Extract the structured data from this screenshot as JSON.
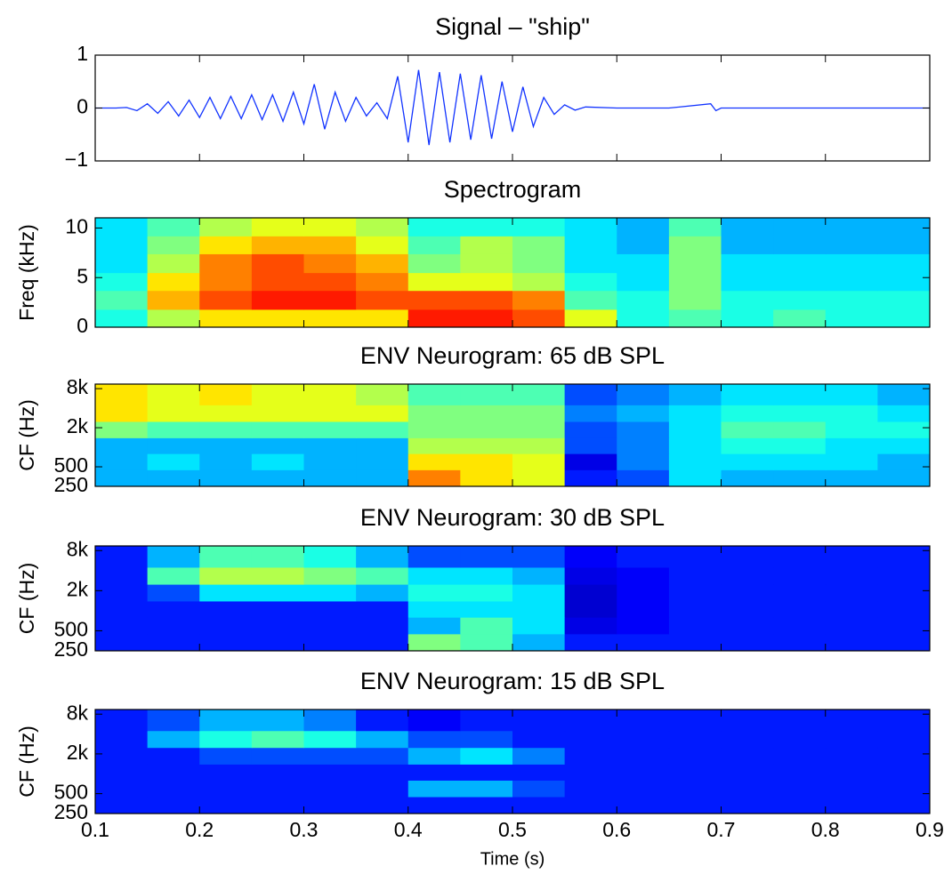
{
  "chart_data": [
    {
      "type": "line",
      "title": "Signal – \"ship\"",
      "color": "#1133ff",
      "x": [
        0.1,
        0.11,
        0.12,
        0.13,
        0.14,
        0.15,
        0.16,
        0.17,
        0.18,
        0.19,
        0.2,
        0.21,
        0.22,
        0.23,
        0.24,
        0.25,
        0.26,
        0.27,
        0.28,
        0.29,
        0.3,
        0.31,
        0.32,
        0.33,
        0.34,
        0.35,
        0.36,
        0.37,
        0.38,
        0.39,
        0.4,
        0.41,
        0.42,
        0.43,
        0.44,
        0.45,
        0.46,
        0.47,
        0.48,
        0.49,
        0.5,
        0.51,
        0.52,
        0.53,
        0.54,
        0.55,
        0.56,
        0.57,
        0.6,
        0.65,
        0.69,
        0.695,
        0.7,
        0.8,
        0.9
      ],
      "values": [
        0,
        0,
        0,
        0.01,
        -0.05,
        0.08,
        -0.1,
        0.12,
        -0.15,
        0.15,
        -0.18,
        0.2,
        -0.2,
        0.22,
        -0.2,
        0.25,
        -0.22,
        0.25,
        -0.25,
        0.3,
        -0.3,
        0.45,
        -0.4,
        0.3,
        -0.25,
        0.2,
        -0.15,
        0.1,
        -0.2,
        0.6,
        -0.65,
        0.72,
        -0.7,
        0.68,
        -0.65,
        0.65,
        -0.6,
        0.62,
        -0.58,
        0.5,
        -0.45,
        0.4,
        -0.35,
        0.2,
        -0.12,
        0.06,
        -0.04,
        0.02,
        0,
        0,
        0.08,
        -0.05,
        0,
        0,
        0
      ],
      "xlim": [
        0.1,
        0.9
      ],
      "xticks": [
        0.1,
        0.2,
        0.3,
        0.4,
        0.5,
        0.6,
        0.7,
        0.8,
        0.9
      ],
      "show_xtick_labels": false,
      "ylim": [
        -1,
        1
      ],
      "yticks": [
        {
          "value": -1,
          "label": "−1"
        },
        0,
        1
      ]
    },
    {
      "type": "heatmap",
      "title": "Spectrogram",
      "ylabel": "Freq (kHz)",
      "colormap": "jet",
      "zlim": [
        0,
        1
      ],
      "xlim": [
        0.1,
        0.9
      ],
      "xticks": [
        0.1,
        0.2,
        0.3,
        0.4,
        0.5,
        0.6,
        0.7,
        0.8,
        0.9
      ],
      "show_xtick_labels": false,
      "ylim": [
        0,
        11.025
      ],
      "yticks": [
        0,
        5,
        10
      ],
      "xbins": [
        0.1,
        0.15,
        0.2,
        0.25,
        0.3,
        0.35,
        0.4,
        0.45,
        0.5,
        0.55,
        0.6,
        0.65,
        0.7,
        0.75,
        0.8,
        0.85,
        0.9
      ],
      "ybins": [
        0,
        1.8,
        3.7,
        5.5,
        7.4,
        9.2,
        11.025
      ],
      "z": [
        [
          0.4,
          0.55,
          0.65,
          0.65,
          0.65,
          0.65,
          0.85,
          0.85,
          0.8,
          0.6,
          0.4,
          0.45,
          0.4,
          0.45,
          0.4,
          0.4
        ],
        [
          0.45,
          0.7,
          0.8,
          0.85,
          0.85,
          0.8,
          0.8,
          0.8,
          0.75,
          0.45,
          0.4,
          0.5,
          0.4,
          0.4,
          0.4,
          0.4
        ],
        [
          0.4,
          0.65,
          0.75,
          0.8,
          0.8,
          0.75,
          0.6,
          0.6,
          0.55,
          0.4,
          0.35,
          0.5,
          0.35,
          0.35,
          0.35,
          0.35
        ],
        [
          0.35,
          0.55,
          0.75,
          0.8,
          0.75,
          0.7,
          0.5,
          0.55,
          0.5,
          0.35,
          0.35,
          0.5,
          0.35,
          0.35,
          0.35,
          0.35
        ],
        [
          0.35,
          0.5,
          0.65,
          0.7,
          0.7,
          0.6,
          0.45,
          0.55,
          0.5,
          0.35,
          0.3,
          0.5,
          0.3,
          0.3,
          0.3,
          0.3
        ],
        [
          0.35,
          0.45,
          0.55,
          0.6,
          0.6,
          0.55,
          0.4,
          0.4,
          0.4,
          0.35,
          0.3,
          0.45,
          0.3,
          0.3,
          0.3,
          0.3
        ]
      ]
    },
    {
      "type": "heatmap",
      "title": "ENV Neurogram: 65 dB SPL",
      "ylabel": "CF (Hz)",
      "colormap": "jet",
      "zlim": [
        0,
        1
      ],
      "yscale": "log",
      "xlim": [
        0.1,
        0.9
      ],
      "xticks": [
        0.1,
        0.2,
        0.3,
        0.4,
        0.5,
        0.6,
        0.7,
        0.8,
        0.9
      ],
      "show_xtick_labels": false,
      "ylim": [
        250,
        9400
      ],
      "yticks": [
        250,
        500,
        {
          "value": 2000,
          "label": "2k"
        },
        {
          "value": 8000,
          "label": "8k"
        }
      ],
      "xbins": [
        0.1,
        0.15,
        0.2,
        0.25,
        0.3,
        0.35,
        0.4,
        0.45,
        0.5,
        0.55,
        0.6,
        0.65,
        0.7,
        0.75,
        0.8,
        0.85,
        0.9
      ],
      "ybins": [
        250,
        450,
        800,
        1400,
        2500,
        4500,
        9400
      ],
      "z": [
        [
          0.3,
          0.3,
          0.3,
          0.3,
          0.3,
          0.3,
          0.75,
          0.65,
          0.6,
          0.15,
          0.2,
          0.35,
          0.3,
          0.3,
          0.3,
          0.3
        ],
        [
          0.3,
          0.35,
          0.3,
          0.35,
          0.3,
          0.3,
          0.65,
          0.65,
          0.6,
          0.1,
          0.25,
          0.35,
          0.35,
          0.35,
          0.35,
          0.3
        ],
        [
          0.3,
          0.3,
          0.3,
          0.3,
          0.3,
          0.3,
          0.55,
          0.55,
          0.55,
          0.2,
          0.25,
          0.35,
          0.4,
          0.4,
          0.35,
          0.35
        ],
        [
          0.5,
          0.45,
          0.45,
          0.45,
          0.45,
          0.45,
          0.5,
          0.5,
          0.5,
          0.2,
          0.25,
          0.35,
          0.45,
          0.45,
          0.4,
          0.4
        ],
        [
          0.65,
          0.6,
          0.6,
          0.6,
          0.6,
          0.6,
          0.5,
          0.5,
          0.5,
          0.25,
          0.3,
          0.35,
          0.4,
          0.4,
          0.4,
          0.35
        ],
        [
          0.65,
          0.6,
          0.65,
          0.6,
          0.6,
          0.55,
          0.45,
          0.45,
          0.45,
          0.2,
          0.25,
          0.3,
          0.35,
          0.35,
          0.35,
          0.3
        ]
      ]
    },
    {
      "type": "heatmap",
      "title": "ENV Neurogram: 30 dB SPL",
      "ylabel": "CF (Hz)",
      "colormap": "jet",
      "zlim": [
        0,
        1
      ],
      "yscale": "log",
      "xlim": [
        0.1,
        0.9
      ],
      "xticks": [
        0.1,
        0.2,
        0.3,
        0.4,
        0.5,
        0.6,
        0.7,
        0.8,
        0.9
      ],
      "show_xtick_labels": false,
      "ylim": [
        250,
        9400
      ],
      "yticks": [
        250,
        500,
        {
          "value": 2000,
          "label": "2k"
        },
        {
          "value": 8000,
          "label": "8k"
        }
      ],
      "xbins": [
        0.1,
        0.15,
        0.2,
        0.25,
        0.3,
        0.35,
        0.4,
        0.45,
        0.5,
        0.55,
        0.6,
        0.65,
        0.7,
        0.75,
        0.8,
        0.85,
        0.9
      ],
      "ybins": [
        250,
        450,
        800,
        1400,
        2500,
        4500,
        9400
      ],
      "z": [
        [
          0.15,
          0.15,
          0.15,
          0.15,
          0.15,
          0.15,
          0.5,
          0.45,
          0.3,
          0.15,
          0.15,
          0.15,
          0.15,
          0.15,
          0.15,
          0.15
        ],
        [
          0.15,
          0.15,
          0.15,
          0.15,
          0.15,
          0.15,
          0.3,
          0.45,
          0.35,
          0.1,
          0.12,
          0.15,
          0.15,
          0.15,
          0.15,
          0.15
        ],
        [
          0.15,
          0.15,
          0.15,
          0.15,
          0.15,
          0.15,
          0.35,
          0.35,
          0.35,
          0.08,
          0.12,
          0.15,
          0.15,
          0.15,
          0.15,
          0.15
        ],
        [
          0.15,
          0.2,
          0.35,
          0.35,
          0.35,
          0.3,
          0.4,
          0.4,
          0.35,
          0.08,
          0.12,
          0.15,
          0.15,
          0.15,
          0.15,
          0.15
        ],
        [
          0.15,
          0.45,
          0.55,
          0.55,
          0.5,
          0.45,
          0.35,
          0.35,
          0.3,
          0.1,
          0.12,
          0.15,
          0.15,
          0.15,
          0.15,
          0.15
        ],
        [
          0.15,
          0.3,
          0.45,
          0.45,
          0.4,
          0.3,
          0.2,
          0.2,
          0.2,
          0.12,
          0.15,
          0.15,
          0.15,
          0.15,
          0.15,
          0.15
        ]
      ]
    },
    {
      "type": "heatmap",
      "title": "ENV Neurogram: 15 dB SPL",
      "ylabel": "CF (Hz)",
      "xlabel": "Time (s)",
      "colormap": "jet",
      "zlim": [
        0,
        1
      ],
      "yscale": "log",
      "xlim": [
        0.1,
        0.9
      ],
      "xticks": [
        0.1,
        0.2,
        0.3,
        0.4,
        0.5,
        0.6,
        0.7,
        0.8,
        0.9
      ],
      "show_xtick_labels": true,
      "ylim": [
        250,
        9400
      ],
      "yticks": [
        250,
        500,
        {
          "value": 2000,
          "label": "2k"
        },
        {
          "value": 8000,
          "label": "8k"
        }
      ],
      "xbins": [
        0.1,
        0.15,
        0.2,
        0.25,
        0.3,
        0.35,
        0.4,
        0.45,
        0.5,
        0.55,
        0.6,
        0.65,
        0.7,
        0.75,
        0.8,
        0.85,
        0.9
      ],
      "ybins": [
        250,
        450,
        800,
        1400,
        2500,
        4500,
        9400
      ],
      "z": [
        [
          0.15,
          0.15,
          0.15,
          0.15,
          0.15,
          0.15,
          0.15,
          0.15,
          0.15,
          0.15,
          0.15,
          0.15,
          0.15,
          0.15,
          0.15,
          0.15
        ],
        [
          0.15,
          0.15,
          0.15,
          0.15,
          0.15,
          0.15,
          0.3,
          0.3,
          0.2,
          0.15,
          0.15,
          0.15,
          0.15,
          0.15,
          0.15,
          0.15
        ],
        [
          0.15,
          0.15,
          0.15,
          0.15,
          0.15,
          0.15,
          0.15,
          0.15,
          0.15,
          0.15,
          0.15,
          0.15,
          0.15,
          0.15,
          0.15,
          0.15
        ],
        [
          0.15,
          0.15,
          0.2,
          0.2,
          0.2,
          0.2,
          0.3,
          0.35,
          0.25,
          0.15,
          0.15,
          0.15,
          0.15,
          0.15,
          0.15,
          0.15
        ],
        [
          0.15,
          0.3,
          0.4,
          0.45,
          0.4,
          0.3,
          0.2,
          0.2,
          0.15,
          0.15,
          0.15,
          0.15,
          0.15,
          0.15,
          0.15,
          0.15
        ],
        [
          0.15,
          0.2,
          0.3,
          0.3,
          0.25,
          0.15,
          0.12,
          0.15,
          0.15,
          0.15,
          0.15,
          0.15,
          0.15,
          0.15,
          0.15,
          0.15
        ]
      ]
    }
  ]
}
